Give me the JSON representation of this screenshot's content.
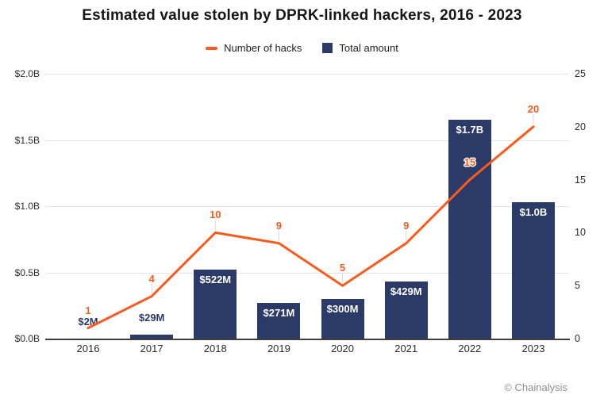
{
  "attribution": "© Chainalysis",
  "chart_data": {
    "type": "bar",
    "title": "Estimated value stolen by DPRK-linked hackers, 2016 - 2023",
    "categories": [
      "2016",
      "2017",
      "2018",
      "2019",
      "2020",
      "2021",
      "2022",
      "2023"
    ],
    "series": [
      {
        "name": "Total amount",
        "kind": "bar",
        "axis": "left",
        "values_usd_millions": [
          2,
          29,
          522,
          271,
          300,
          429,
          1650,
          1030
        ],
        "labels": [
          "$2M",
          "$29M",
          "$522M",
          "$271M",
          "$300M",
          "$429M",
          "$1.7B",
          "$1.0B"
        ],
        "color_key": "navy"
      },
      {
        "name": "Number of hacks",
        "kind": "line",
        "axis": "right",
        "values": [
          1,
          4,
          10,
          9,
          5,
          9,
          15,
          20
        ],
        "color_key": "orange"
      }
    ],
    "left_axis": {
      "ticks": [
        "$2.0B",
        "$1.5B",
        "$1.0B",
        "$0.5B",
        "$0.0B"
      ],
      "min": 0,
      "max": 2000
    },
    "right_axis": {
      "ticks": [
        "25",
        "20",
        "15",
        "10",
        "5",
        "0"
      ],
      "min": 0,
      "max": 25
    },
    "legend": [
      {
        "label": "Number of hacks",
        "swatch": "line-dash"
      },
      {
        "label": "Total amount",
        "swatch": "square"
      }
    ],
    "legend_position": "top",
    "grid": true,
    "colors": {
      "orange": "#F75B1E",
      "navy": "#2C3A68",
      "grid": "#E3E3E3",
      "axis": "#3F3F3F",
      "muted": "#8F8F8F"
    }
  }
}
